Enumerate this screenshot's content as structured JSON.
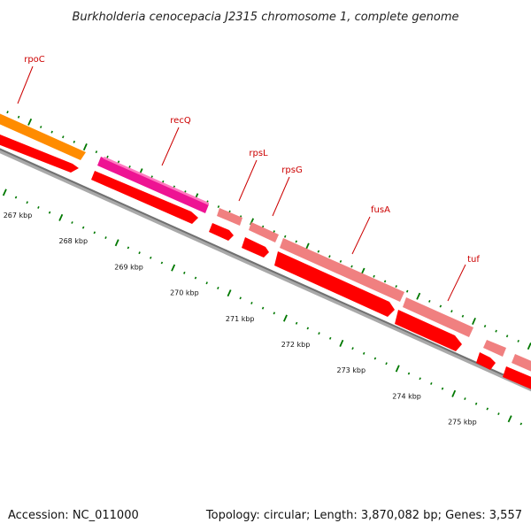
{
  "title": "Burkholderia cenocepacia J2315 chromosome 1, complete genome",
  "footer": {
    "accession": "Accession: NC_011000",
    "summary": "Topology: circular; Length: 3,870,082 bp; Genes: 3,557"
  },
  "colors": {
    "rpoC": "#ff8c00",
    "recQ": "#ee1493",
    "ribosomal": "#f08080",
    "cds": "#ff0000",
    "backbone": "#808080",
    "ticks": "#007800",
    "label": "#cc0000"
  },
  "genes": [
    "rpoC",
    "recQ",
    "rpsL",
    "rpsG",
    "fusA",
    "tuf"
  ],
  "ticks": [
    "267 kbp",
    "268 kbp",
    "269 kbp",
    "270 kbp",
    "271 kbp",
    "272 kbp",
    "273 kbp",
    "274 kbp",
    "275 kbp"
  ]
}
